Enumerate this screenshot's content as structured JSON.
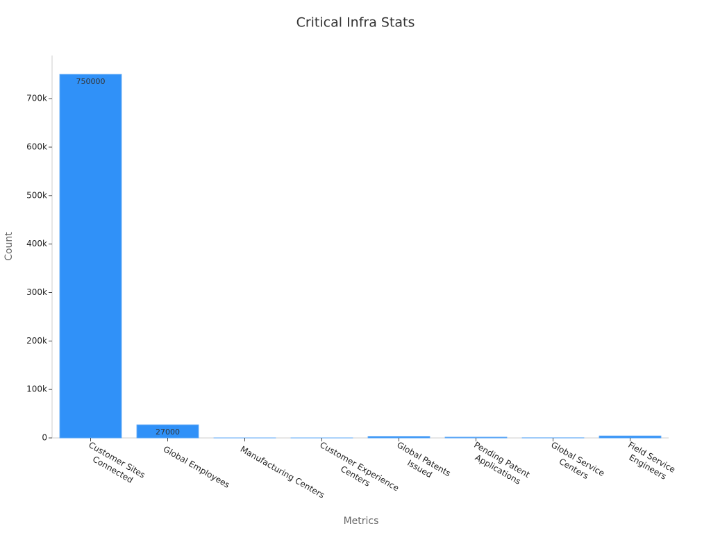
{
  "chart_data": {
    "type": "bar",
    "title": "Critical Infra Stats",
    "x_label": "Metrics",
    "y_label": "Count",
    "categories": [
      "Customer Sites\nConnected",
      "Global Employees",
      "Manufacturing Centers",
      "Customer Experience\nCenters",
      "Global Patents\nIssued",
      "Pending Patent\nApplications",
      "Global Service\nCenters",
      "Field Service\nEngineers"
    ],
    "values": [
      750000,
      27000,
      20,
      15,
      3000,
      1500,
      200,
      4000
    ],
    "color": "#3091f8",
    "ylim": [
      0,
      789000
    ],
    "yticks": [
      0,
      {
        "value": 100000,
        "label": "100k"
      },
      {
        "value": 200000,
        "label": "200k"
      },
      {
        "value": 300000,
        "label": "300k"
      },
      {
        "value": 400000,
        "label": "400k"
      },
      {
        "value": 500000,
        "label": "500k"
      },
      {
        "value": 600000,
        "label": "600k"
      },
      {
        "value": 700000,
        "label": "700k"
      }
    ]
  }
}
